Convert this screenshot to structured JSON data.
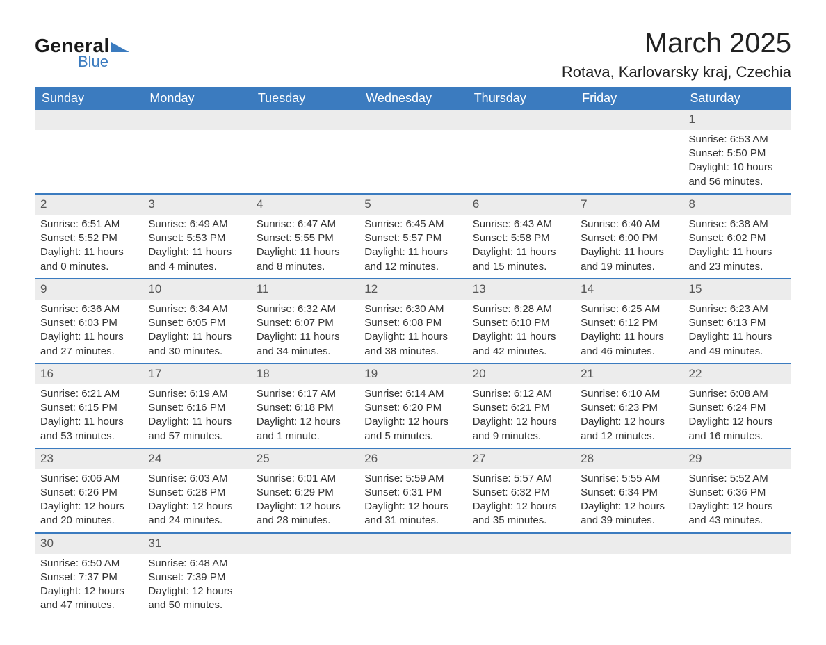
{
  "logo": {
    "general": "General",
    "blue": "Blue"
  },
  "title": "March 2025",
  "location": "Rotava, Karlovarsky kraj, Czechia",
  "colors": {
    "header_bg": "#3b7bbf",
    "header_text": "#ffffff",
    "daynum_bg": "#ececec",
    "row_border": "#3b7bbf",
    "body_text": "#333333",
    "logo_blue": "#3b7bbf"
  },
  "fonts": {
    "title_size_pt": 30,
    "location_size_pt": 16,
    "header_size_pt": 13,
    "body_size_pt": 11
  },
  "day_headers": [
    "Sunday",
    "Monday",
    "Tuesday",
    "Wednesday",
    "Thursday",
    "Friday",
    "Saturday"
  ],
  "weeks": [
    [
      null,
      null,
      null,
      null,
      null,
      null,
      {
        "n": "1",
        "sr": "Sunrise: 6:53 AM",
        "ss": "Sunset: 5:50 PM",
        "d1": "Daylight: 10 hours",
        "d2": "and 56 minutes."
      }
    ],
    [
      {
        "n": "2",
        "sr": "Sunrise: 6:51 AM",
        "ss": "Sunset: 5:52 PM",
        "d1": "Daylight: 11 hours",
        "d2": "and 0 minutes."
      },
      {
        "n": "3",
        "sr": "Sunrise: 6:49 AM",
        "ss": "Sunset: 5:53 PM",
        "d1": "Daylight: 11 hours",
        "d2": "and 4 minutes."
      },
      {
        "n": "4",
        "sr": "Sunrise: 6:47 AM",
        "ss": "Sunset: 5:55 PM",
        "d1": "Daylight: 11 hours",
        "d2": "and 8 minutes."
      },
      {
        "n": "5",
        "sr": "Sunrise: 6:45 AM",
        "ss": "Sunset: 5:57 PM",
        "d1": "Daylight: 11 hours",
        "d2": "and 12 minutes."
      },
      {
        "n": "6",
        "sr": "Sunrise: 6:43 AM",
        "ss": "Sunset: 5:58 PM",
        "d1": "Daylight: 11 hours",
        "d2": "and 15 minutes."
      },
      {
        "n": "7",
        "sr": "Sunrise: 6:40 AM",
        "ss": "Sunset: 6:00 PM",
        "d1": "Daylight: 11 hours",
        "d2": "and 19 minutes."
      },
      {
        "n": "8",
        "sr": "Sunrise: 6:38 AM",
        "ss": "Sunset: 6:02 PM",
        "d1": "Daylight: 11 hours",
        "d2": "and 23 minutes."
      }
    ],
    [
      {
        "n": "9",
        "sr": "Sunrise: 6:36 AM",
        "ss": "Sunset: 6:03 PM",
        "d1": "Daylight: 11 hours",
        "d2": "and 27 minutes."
      },
      {
        "n": "10",
        "sr": "Sunrise: 6:34 AM",
        "ss": "Sunset: 6:05 PM",
        "d1": "Daylight: 11 hours",
        "d2": "and 30 minutes."
      },
      {
        "n": "11",
        "sr": "Sunrise: 6:32 AM",
        "ss": "Sunset: 6:07 PM",
        "d1": "Daylight: 11 hours",
        "d2": "and 34 minutes."
      },
      {
        "n": "12",
        "sr": "Sunrise: 6:30 AM",
        "ss": "Sunset: 6:08 PM",
        "d1": "Daylight: 11 hours",
        "d2": "and 38 minutes."
      },
      {
        "n": "13",
        "sr": "Sunrise: 6:28 AM",
        "ss": "Sunset: 6:10 PM",
        "d1": "Daylight: 11 hours",
        "d2": "and 42 minutes."
      },
      {
        "n": "14",
        "sr": "Sunrise: 6:25 AM",
        "ss": "Sunset: 6:12 PM",
        "d1": "Daylight: 11 hours",
        "d2": "and 46 minutes."
      },
      {
        "n": "15",
        "sr": "Sunrise: 6:23 AM",
        "ss": "Sunset: 6:13 PM",
        "d1": "Daylight: 11 hours",
        "d2": "and 49 minutes."
      }
    ],
    [
      {
        "n": "16",
        "sr": "Sunrise: 6:21 AM",
        "ss": "Sunset: 6:15 PM",
        "d1": "Daylight: 11 hours",
        "d2": "and 53 minutes."
      },
      {
        "n": "17",
        "sr": "Sunrise: 6:19 AM",
        "ss": "Sunset: 6:16 PM",
        "d1": "Daylight: 11 hours",
        "d2": "and 57 minutes."
      },
      {
        "n": "18",
        "sr": "Sunrise: 6:17 AM",
        "ss": "Sunset: 6:18 PM",
        "d1": "Daylight: 12 hours",
        "d2": "and 1 minute."
      },
      {
        "n": "19",
        "sr": "Sunrise: 6:14 AM",
        "ss": "Sunset: 6:20 PM",
        "d1": "Daylight: 12 hours",
        "d2": "and 5 minutes."
      },
      {
        "n": "20",
        "sr": "Sunrise: 6:12 AM",
        "ss": "Sunset: 6:21 PM",
        "d1": "Daylight: 12 hours",
        "d2": "and 9 minutes."
      },
      {
        "n": "21",
        "sr": "Sunrise: 6:10 AM",
        "ss": "Sunset: 6:23 PM",
        "d1": "Daylight: 12 hours",
        "d2": "and 12 minutes."
      },
      {
        "n": "22",
        "sr": "Sunrise: 6:08 AM",
        "ss": "Sunset: 6:24 PM",
        "d1": "Daylight: 12 hours",
        "d2": "and 16 minutes."
      }
    ],
    [
      {
        "n": "23",
        "sr": "Sunrise: 6:06 AM",
        "ss": "Sunset: 6:26 PM",
        "d1": "Daylight: 12 hours",
        "d2": "and 20 minutes."
      },
      {
        "n": "24",
        "sr": "Sunrise: 6:03 AM",
        "ss": "Sunset: 6:28 PM",
        "d1": "Daylight: 12 hours",
        "d2": "and 24 minutes."
      },
      {
        "n": "25",
        "sr": "Sunrise: 6:01 AM",
        "ss": "Sunset: 6:29 PM",
        "d1": "Daylight: 12 hours",
        "d2": "and 28 minutes."
      },
      {
        "n": "26",
        "sr": "Sunrise: 5:59 AM",
        "ss": "Sunset: 6:31 PM",
        "d1": "Daylight: 12 hours",
        "d2": "and 31 minutes."
      },
      {
        "n": "27",
        "sr": "Sunrise: 5:57 AM",
        "ss": "Sunset: 6:32 PM",
        "d1": "Daylight: 12 hours",
        "d2": "and 35 minutes."
      },
      {
        "n": "28",
        "sr": "Sunrise: 5:55 AM",
        "ss": "Sunset: 6:34 PM",
        "d1": "Daylight: 12 hours",
        "d2": "and 39 minutes."
      },
      {
        "n": "29",
        "sr": "Sunrise: 5:52 AM",
        "ss": "Sunset: 6:36 PM",
        "d1": "Daylight: 12 hours",
        "d2": "and 43 minutes."
      }
    ],
    [
      {
        "n": "30",
        "sr": "Sunrise: 6:50 AM",
        "ss": "Sunset: 7:37 PM",
        "d1": "Daylight: 12 hours",
        "d2": "and 47 minutes."
      },
      {
        "n": "31",
        "sr": "Sunrise: 6:48 AM",
        "ss": "Sunset: 7:39 PM",
        "d1": "Daylight: 12 hours",
        "d2": "and 50 minutes."
      },
      null,
      null,
      null,
      null,
      null
    ]
  ]
}
